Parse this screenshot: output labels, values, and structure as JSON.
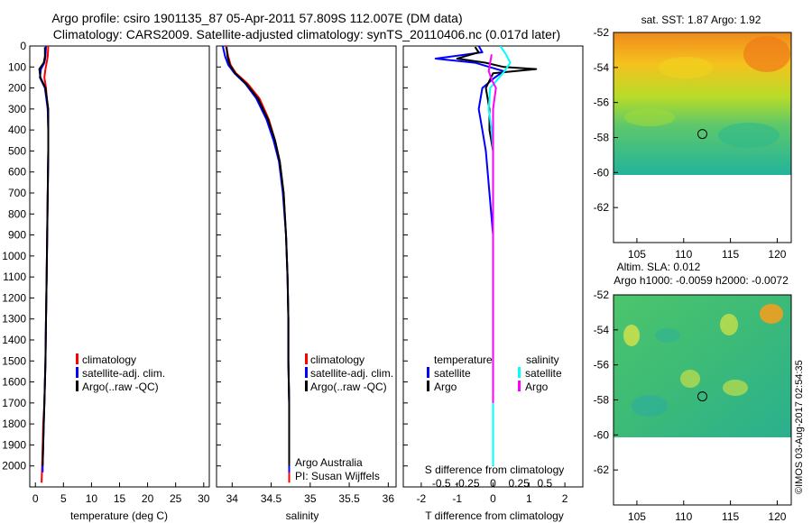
{
  "header": {
    "line1": "Argo profile: csiro 1901135_87 05-Apr-2011 57.809S 112.007E (DM data)",
    "line2": "Climatology: CARS2009. Satellite-adjusted climatology: synTS_20110406.nc (0.017d later)"
  },
  "colors": {
    "red": "#ff0000",
    "blue": "#0000ff",
    "black": "#000000",
    "cyan": "#00ffff",
    "magenta": "#ff00ff"
  },
  "chart_data": [
    {
      "type": "line",
      "panel": "temperature",
      "xlabel": "temperature (deg C)",
      "ylabel": "",
      "xlim": [
        -1,
        31
      ],
      "ylim": [
        2100,
        0
      ],
      "xticks": [
        0,
        5,
        10,
        15,
        20,
        25,
        30
      ],
      "yticks": [
        0,
        100,
        200,
        300,
        400,
        500,
        600,
        700,
        800,
        900,
        1000,
        1100,
        1200,
        1300,
        1400,
        1500,
        1600,
        1700,
        1800,
        1900,
        2000
      ],
      "legend": [
        "climatology",
        "satellite-adj. clim.",
        "Argo(..raw -QC)"
      ],
      "series": [
        {
          "name": "climatology",
          "color": "red",
          "x": [
            2.3,
            2.2,
            2.0,
            1.8,
            1.6,
            1.9,
            2.2,
            2.3,
            2.3,
            2.2,
            2.1,
            2.0,
            1.9,
            1.8,
            1.6,
            1.4,
            1.3,
            1.2,
            1.1
          ],
          "y": [
            0,
            50,
            80,
            110,
            150,
            200,
            300,
            400,
            500,
            700,
            900,
            1100,
            1300,
            1500,
            1700,
            1800,
            1900,
            2000,
            2080
          ]
        },
        {
          "name": "satellite-adj. clim.",
          "color": "blue",
          "x": [
            1.9,
            1.8,
            1.6,
            1.0,
            0.8,
            1.7,
            2.2,
            2.3,
            2.3,
            2.2,
            2.1,
            2.0,
            1.9,
            1.8,
            1.6,
            1.5,
            1.4,
            1.3,
            1.3
          ],
          "y": [
            0,
            50,
            80,
            110,
            150,
            200,
            300,
            400,
            500,
            700,
            900,
            1100,
            1300,
            1500,
            1700,
            1800,
            1900,
            2000,
            2030
          ]
        },
        {
          "name": "Argo(..raw -QC)",
          "color": "black",
          "x": [
            1.7,
            1.7,
            1.5,
            0.7,
            0.9,
            1.8,
            2.3,
            2.3,
            2.3,
            2.2,
            2.1,
            2.0,
            1.9,
            1.8,
            1.6,
            1.5,
            1.4,
            1.3
          ],
          "y": [
            5,
            50,
            80,
            110,
            150,
            200,
            300,
            400,
            500,
            700,
            900,
            1100,
            1300,
            1500,
            1700,
            1800,
            1900,
            2000
          ]
        }
      ]
    },
    {
      "type": "line",
      "panel": "salinity",
      "xlabel": "salinity",
      "xlim": [
        33.8,
        36.1
      ],
      "ylim": [
        2100,
        0
      ],
      "xticks": [
        34,
        34.5,
        35,
        35.5,
        36
      ],
      "xticklabels": [
        "34",
        "34.5",
        "35",
        "35.5",
        "36"
      ],
      "legend": [
        "climatology",
        "satellite-adj. clim.",
        "Argo(..raw -QC)"
      ],
      "annotation": [
        "Argo Australia",
        "PI: Susan Wijffels"
      ],
      "series": [
        {
          "name": "climatology",
          "color": "red",
          "x": [
            33.92,
            33.95,
            33.98,
            34.05,
            34.2,
            34.35,
            34.47,
            34.55,
            34.61,
            34.66,
            34.69,
            34.71,
            34.72,
            34.72,
            34.73,
            34.73,
            34.73,
            34.73
          ],
          "y": [
            0,
            50,
            90,
            130,
            180,
            250,
            350,
            450,
            550,
            700,
            900,
            1100,
            1300,
            1500,
            1700,
            1900,
            2000,
            2080
          ]
        },
        {
          "name": "satellite-adj. clim.",
          "color": "blue",
          "x": [
            33.88,
            33.91,
            33.95,
            34.03,
            34.17,
            34.31,
            34.44,
            34.53,
            34.6,
            34.65,
            34.69,
            34.71,
            34.72,
            34.72,
            34.73,
            34.73,
            34.73
          ],
          "y": [
            0,
            50,
            90,
            130,
            180,
            250,
            350,
            450,
            550,
            700,
            900,
            1100,
            1300,
            1500,
            1700,
            1900,
            2030
          ]
        },
        {
          "name": "Argo(..raw -QC)",
          "color": "black",
          "x": [
            33.93,
            33.94,
            33.97,
            34.04,
            34.18,
            34.33,
            34.46,
            34.55,
            34.61,
            34.66,
            34.69,
            34.71,
            34.72,
            34.72,
            34.73,
            34.73,
            34.73
          ],
          "y": [
            5,
            50,
            90,
            130,
            180,
            250,
            350,
            450,
            550,
            700,
            900,
            1100,
            1300,
            1500,
            1700,
            1900,
            2000
          ]
        }
      ]
    },
    {
      "type": "line",
      "panel": "difference",
      "xlabel": "T difference from climatology",
      "xlabel_top": "S difference from climatology",
      "xlim": [
        -2.5,
        2.5
      ],
      "ylim": [
        2100,
        0
      ],
      "xticks": [
        -2,
        -1,
        0,
        1,
        2
      ],
      "xticks_s": [
        -0.5,
        -0.25,
        0,
        0.25,
        0.5
      ],
      "xticklabels_s": [
        "-0.5",
        "-0.25",
        "0",
        "0.25",
        "0.5"
      ],
      "legend_titles": [
        "temperature",
        "salinity"
      ],
      "legend": [
        "satellite",
        "Argo",
        "satellite",
        "Argo"
      ],
      "series": [
        {
          "name": "temperature satellite",
          "color": "blue",
          "x": [
            -0.4,
            -0.3,
            -1.6,
            -0.5,
            -0.1,
            0.3,
            0.05,
            -0.3,
            -0.4,
            -0.3,
            -0.2,
            -0.1,
            0.0,
            0.0,
            0.0,
            0.0,
            0.0,
            0.0
          ],
          "y": [
            0,
            30,
            60,
            80,
            100,
            120,
            150,
            200,
            300,
            400,
            500,
            700,
            900,
            1100,
            1300,
            1500,
            1700,
            2000
          ]
        },
        {
          "name": "temperature Argo",
          "color": "black",
          "x": [
            -0.5,
            -0.4,
            -1.0,
            -0.2,
            0.3,
            1.2,
            0.0,
            -0.2,
            -0.1,
            -0.1,
            0.0,
            0.0,
            0.0,
            0.0,
            0.0,
            0.0,
            0.0,
            0.0
          ],
          "y": [
            5,
            30,
            60,
            80,
            100,
            110,
            130,
            200,
            300,
            400,
            500,
            700,
            900,
            1100,
            1300,
            1500,
            1700,
            2000
          ]
        },
        {
          "name": "salinity satellite",
          "color": "cyan",
          "x": [
            0.05,
            0.09,
            0.12,
            0.08,
            0.03,
            -0.02,
            -0.03,
            -0.01,
            0.0,
            0.0,
            0.0,
            0.0,
            0.0,
            0.0,
            0.0,
            0.0
          ],
          "y": [
            0,
            40,
            80,
            120,
            160,
            200,
            300,
            400,
            500,
            700,
            900,
            1100,
            1300,
            1500,
            1700,
            2000
          ]
        },
        {
          "name": "salinity Argo",
          "color": "magenta",
          "x": [
            -0.01,
            -0.02,
            -0.03,
            -0.01,
            0.02,
            0.0,
            0.0,
            0.0,
            0.0,
            0.0,
            0.0,
            0.0,
            0.0,
            0.0
          ],
          "y": [
            40,
            80,
            120,
            160,
            200,
            300,
            400,
            500,
            700,
            900,
            1100,
            1300,
            1500,
            1700
          ]
        }
      ]
    },
    {
      "type": "heatmap",
      "panel": "sst-map",
      "title": "sat. SST: 1.87 Argo: 1.92",
      "xlim": [
        102.5,
        121.5
      ],
      "ylim": [
        -64,
        -52
      ],
      "xticks": [
        105,
        110,
        115,
        120
      ],
      "yticks": [
        -52,
        -54,
        -56,
        -58,
        -60,
        -62
      ],
      "data_bottom": -60,
      "marker": {
        "lon": 112.0,
        "lat": -57.8
      }
    },
    {
      "type": "heatmap",
      "panel": "sla-map",
      "title": "Altim. SLA: 0.012",
      "subtitle": "Argo h1000: -0.0059 h2000: -0.0072",
      "xlim": [
        102.5,
        121.5
      ],
      "ylim": [
        -64,
        -52
      ],
      "xticks": [
        105,
        110,
        115,
        120
      ],
      "yticks": [
        -52,
        -54,
        -56,
        -58,
        -60,
        -62
      ],
      "data_bottom": -60,
      "marker": {
        "lon": 112.0,
        "lat": -57.8
      }
    }
  ],
  "credit": "©IMOS 03-Aug-2017 02:54:35"
}
